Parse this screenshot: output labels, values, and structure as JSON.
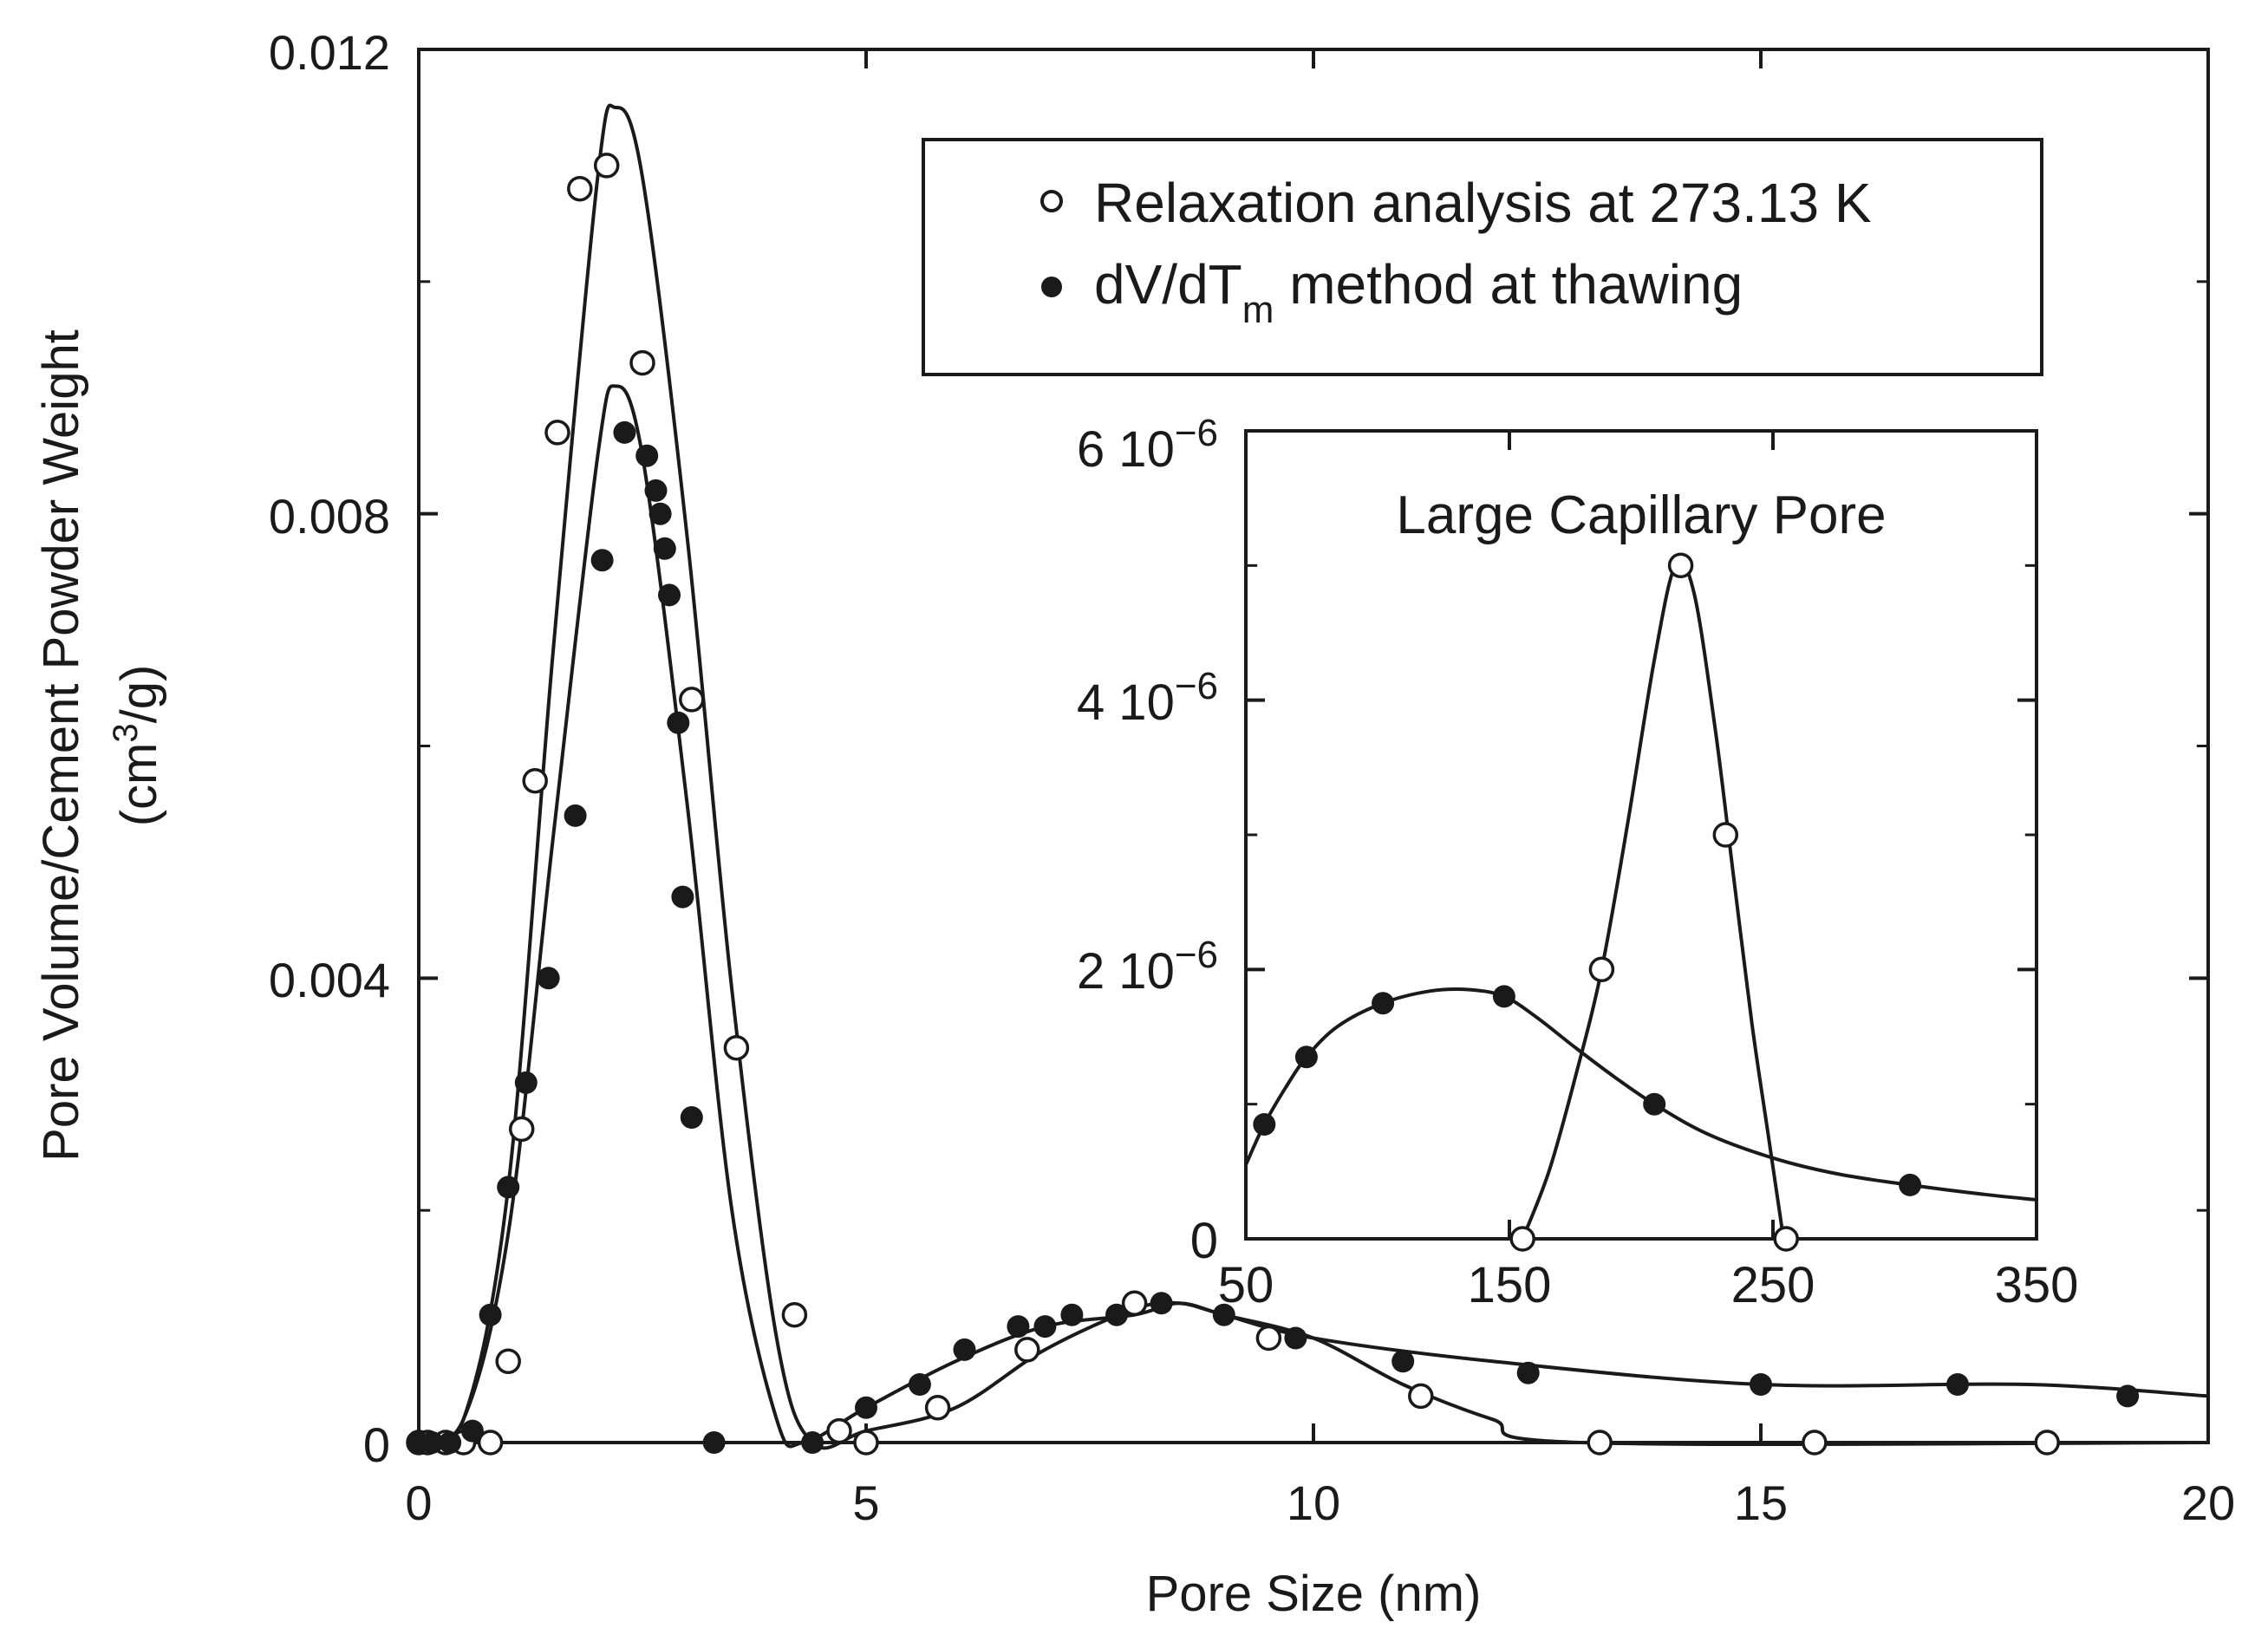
{
  "chart_data": [
    {
      "type": "scatter",
      "title": "",
      "xlabel": "Pore Size (nm)",
      "ylabel": "Pore Volume/Cement Powder Weight",
      "ylabel_unit": "(cm3/g)",
      "ylabel_unit_parts": [
        "(cm",
        "3",
        "/g)"
      ],
      "xlim": [
        0,
        20
      ],
      "ylim": [
        0,
        0.012
      ],
      "x_ticks": [
        0,
        5,
        10,
        15,
        20
      ],
      "x_tick_labels": [
        "0",
        "5",
        "10",
        "15",
        "20"
      ],
      "y_ticks": [
        0,
        0.004,
        0.008,
        0.012
      ],
      "y_tick_labels": [
        "0",
        "0.004",
        "0.008",
        "0.012"
      ],
      "grid": false,
      "legend": {
        "placement": "top-right",
        "entries": [
          {
            "name": "Relaxation analysis at 273.13 K",
            "marker": "open-circle"
          },
          {
            "name": "dV/dTm method at thawing",
            "marker": "filled-circle",
            "text_parts": [
              "dV/dT",
              "m",
              " method at thawing"
            ]
          }
        ]
      },
      "series": [
        {
          "name": "Relaxation analysis at 273.13 K",
          "marker": "open-circle",
          "points": [
            [
              0.0,
              0.0
            ],
            [
              0.1,
              0.0
            ],
            [
              0.3,
              0.0
            ],
            [
              0.5,
              0.0
            ],
            [
              0.8,
              0.0
            ],
            [
              1.0,
              0.0007
            ],
            [
              1.15,
              0.0027
            ],
            [
              1.3,
              0.0057
            ],
            [
              1.55,
              0.0087
            ],
            [
              1.8,
              0.0108
            ],
            [
              2.1,
              0.011
            ],
            [
              2.5,
              0.0093
            ],
            [
              3.05,
              0.0064
            ],
            [
              3.55,
              0.0034
            ],
            [
              4.2,
              0.0011
            ],
            [
              4.7,
              0.0001
            ],
            [
              5.0,
              0.0
            ],
            [
              5.8,
              0.0003
            ],
            [
              6.8,
              0.0008
            ],
            [
              8.0,
              0.0012
            ],
            [
              9.5,
              0.0009
            ],
            [
              11.2,
              0.0004
            ],
            [
              13.2,
              0.0
            ],
            [
              15.6,
              0.0
            ],
            [
              18.2,
              0.0
            ]
          ],
          "fit_curve": [
            [
              0.0,
              0.0
            ],
            [
              0.5,
              0.0002
            ],
            [
              1.0,
              0.0022
            ],
            [
              1.5,
              0.0068
            ],
            [
              2.0,
              0.0109
            ],
            [
              2.2,
              0.0115
            ],
            [
              2.5,
              0.0109
            ],
            [
              3.0,
              0.0078
            ],
            [
              3.5,
              0.0039
            ],
            [
              4.0,
              0.0009
            ],
            [
              4.4,
              0.0
            ],
            [
              5.0,
              0.0001
            ],
            [
              6.0,
              0.0003
            ],
            [
              7.0,
              0.0008
            ],
            [
              8.0,
              0.00115
            ],
            [
              8.5,
              0.0012
            ],
            [
              9.0,
              0.0011
            ],
            [
              10.0,
              0.0009
            ],
            [
              11.0,
              0.0005
            ],
            [
              12.0,
              0.0002
            ],
            [
              13.0,
              0.0
            ],
            [
              20.0,
              0.0
            ]
          ]
        },
        {
          "name": "dV/dTm method at thawing",
          "marker": "filled-circle",
          "points": [
            [
              0.0,
              0.0
            ],
            [
              0.15,
              0.0
            ],
            [
              0.35,
              0.0
            ],
            [
              0.6,
              0.0001
            ],
            [
              0.8,
              0.0011
            ],
            [
              1.0,
              0.0022
            ],
            [
              1.2,
              0.0031
            ],
            [
              1.45,
              0.004
            ],
            [
              1.75,
              0.0054
            ],
            [
              2.05,
              0.0076
            ],
            [
              2.3,
              0.0087
            ],
            [
              2.55,
              0.0085
            ],
            [
              2.65,
              0.0082
            ],
            [
              2.7,
              0.008
            ],
            [
              2.75,
              0.0077
            ],
            [
              2.8,
              0.0073
            ],
            [
              2.9,
              0.0062
            ],
            [
              2.95,
              0.0047
            ],
            [
              3.05,
              0.0028
            ],
            [
              3.3,
              0.0
            ],
            [
              4.4,
              0.0
            ],
            [
              5.0,
              0.0003
            ],
            [
              5.6,
              0.0005
            ],
            [
              6.1,
              0.0008
            ],
            [
              6.7,
              0.001
            ],
            [
              7.0,
              0.001
            ],
            [
              7.3,
              0.0011
            ],
            [
              7.8,
              0.0011
            ],
            [
              8.3,
              0.0012
            ],
            [
              9.0,
              0.0011
            ],
            [
              9.8,
              0.0009
            ],
            [
              11.0,
              0.0007
            ],
            [
              12.4,
              0.0006
            ],
            [
              15.0,
              0.0005
            ],
            [
              17.2,
              0.0005
            ],
            [
              19.1,
              0.0004
            ]
          ],
          "fit_curve": [
            [
              0.0,
              0.0
            ],
            [
              0.5,
              0.0002
            ],
            [
              1.0,
              0.0018
            ],
            [
              1.5,
              0.0052
            ],
            [
              2.0,
              0.0085
            ],
            [
              2.2,
              0.0091
            ],
            [
              2.5,
              0.0085
            ],
            [
              3.0,
              0.0055
            ],
            [
              3.5,
              0.002
            ],
            [
              4.0,
              0.0002
            ],
            [
              4.3,
              0.0
            ],
            [
              5.0,
              0.0003
            ],
            [
              6.0,
              0.0007
            ],
            [
              7.0,
              0.001
            ],
            [
              8.0,
              0.0011
            ],
            [
              8.5,
              0.0012
            ],
            [
              9.0,
              0.0011
            ],
            [
              10.0,
              0.0009
            ],
            [
              12.0,
              0.0007
            ],
            [
              15.0,
              0.0005
            ],
            [
              18.0,
              0.0005
            ],
            [
              20.0,
              0.0004
            ]
          ]
        }
      ]
    },
    {
      "type": "scatter",
      "title": "Large Capillary Pore",
      "xlabel": "",
      "ylabel": "",
      "xlim": [
        50,
        350
      ],
      "ylim": [
        0,
        6e-06
      ],
      "x_ticks": [
        50,
        150,
        250,
        350
      ],
      "x_tick_labels": [
        "50",
        "150",
        "250",
        "350"
      ],
      "y_ticks": [
        0,
        2e-06,
        4e-06,
        6e-06
      ],
      "y_tick_labels": [
        {
          "base": "0",
          "exp": ""
        },
        {
          "base": "2 10",
          "exp": "−6"
        },
        {
          "base": "4 10",
          "exp": "−6"
        },
        {
          "base": "6 10",
          "exp": "−6"
        }
      ],
      "placement": "inset-right",
      "grid": false,
      "series": [
        {
          "name": "Relaxation analysis at 273.13 K",
          "marker": "open-circle",
          "points": [
            [
              155,
              0.0
            ],
            [
              185,
              2e-06
            ],
            [
              215,
              5e-06
            ],
            [
              232,
              3e-06
            ],
            [
              255,
              0.0
            ]
          ],
          "fit_curve": [
            [
              155,
              0.0
            ],
            [
              165,
              5e-07
            ],
            [
              175,
              1.2e-06
            ],
            [
              185,
              2e-06
            ],
            [
              195,
              3.1e-06
            ],
            [
              205,
              4.3e-06
            ],
            [
              213,
              5e-06
            ],
            [
              220,
              4.8e-06
            ],
            [
              228,
              3.8e-06
            ],
            [
              235,
              2.7e-06
            ],
            [
              242,
              1.6e-06
            ],
            [
              248,
              8e-07
            ],
            [
              254,
              0.0
            ]
          ]
        },
        {
          "name": "dV/dTm method at thawing",
          "marker": "filled-circle",
          "points": [
            [
              57,
              8.5e-07
            ],
            [
              73,
              1.35e-06
            ],
            [
              102,
              1.75e-06
            ],
            [
              148,
              1.8e-06
            ],
            [
              205,
              1e-06
            ],
            [
              302,
              4e-07
            ]
          ],
          "fit_curve": [
            [
              50,
              5.5e-07
            ],
            [
              57,
              8.5e-07
            ],
            [
              65,
              1.12e-06
            ],
            [
              73,
              1.35e-06
            ],
            [
              85,
              1.58e-06
            ],
            [
              102,
              1.75e-06
            ],
            [
              120,
              1.84e-06
            ],
            [
              135,
              1.85e-06
            ],
            [
              148,
              1.8e-06
            ],
            [
              160,
              1.65e-06
            ],
            [
              175,
              1.42e-06
            ],
            [
              190,
              1.2e-06
            ],
            [
              205,
              1e-06
            ],
            [
              225,
              7.8e-07
            ],
            [
              250,
              6e-07
            ],
            [
              275,
              4.8e-07
            ],
            [
              302,
              4e-07
            ],
            [
              330,
              3.3e-07
            ],
            [
              350,
              2.9e-07
            ]
          ]
        }
      ]
    }
  ]
}
